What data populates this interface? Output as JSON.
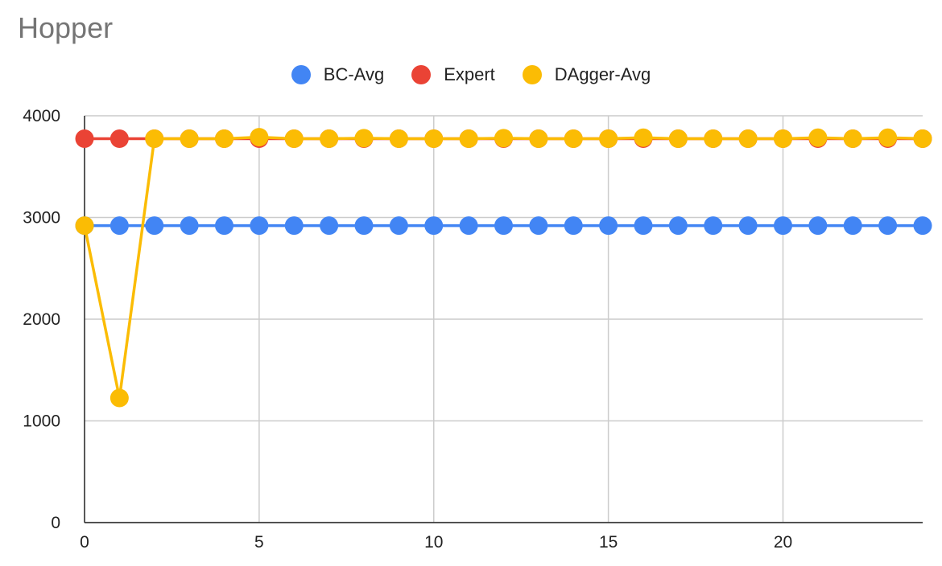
{
  "chart_data": {
    "type": "line",
    "title": "Hopper",
    "xlabel": "",
    "ylabel": "",
    "x": [
      0,
      1,
      2,
      3,
      4,
      5,
      6,
      7,
      8,
      9,
      10,
      11,
      12,
      13,
      14,
      15,
      16,
      17,
      18,
      19,
      20,
      21,
      22,
      23,
      24
    ],
    "xlim": [
      0,
      24
    ],
    "ylim": [
      0,
      4000
    ],
    "xticks": [
      0,
      5,
      10,
      15,
      20
    ],
    "yticks": [
      0,
      1000,
      2000,
      3000,
      4000
    ],
    "grid": true,
    "legend_position": "top",
    "series": [
      {
        "name": "BC-Avg",
        "color": "#4285f4",
        "values": [
          2920,
          2920,
          2920,
          2920,
          2920,
          2920,
          2920,
          2920,
          2920,
          2920,
          2920,
          2920,
          2920,
          2920,
          2920,
          2920,
          2920,
          2920,
          2920,
          2920,
          2920,
          2920,
          2920,
          2920,
          2920
        ]
      },
      {
        "name": "Expert",
        "color": "#ea4335",
        "values": [
          3775,
          3775,
          3775,
          3775,
          3775,
          3775,
          3775,
          3775,
          3775,
          3775,
          3775,
          3775,
          3775,
          3775,
          3775,
          3775,
          3775,
          3775,
          3775,
          3775,
          3775,
          3775,
          3775,
          3775,
          3775
        ]
      },
      {
        "name": "DAgger-Avg",
        "color": "#fbbc04",
        "values": [
          2920,
          1225,
          3775,
          3775,
          3775,
          3790,
          3775,
          3775,
          3780,
          3775,
          3775,
          3775,
          3780,
          3775,
          3775,
          3775,
          3785,
          3775,
          3775,
          3775,
          3775,
          3785,
          3775,
          3785,
          3775
        ]
      }
    ]
  }
}
